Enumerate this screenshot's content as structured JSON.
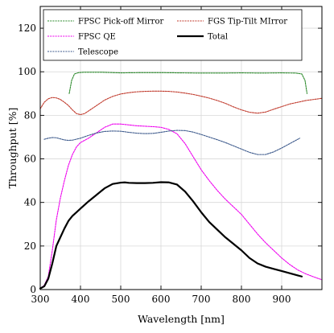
{
  "chart_data": {
    "type": "line",
    "title": "",
    "xlabel": "Wavelength [nm]",
    "ylabel": "Throughput [%]",
    "xlim": [
      300,
      1000
    ],
    "ylim": [
      0,
      130
    ],
    "xticks": [
      300,
      400,
      500,
      600,
      700,
      800,
      900
    ],
    "xtick_labels": [
      "300",
      "400",
      "500",
      "600",
      "700",
      "800",
      "900"
    ],
    "yticks": [
      0,
      20,
      40,
      60,
      80,
      100,
      120
    ],
    "ytick_labels": [
      "0",
      "20",
      "40",
      "60",
      "80",
      "100",
      "120"
    ],
    "grid": true,
    "legend": {
      "placement": "top",
      "columns": 2
    },
    "series": [
      {
        "name": "FPSC Pick-off Mirror",
        "color": "#2e8b2e",
        "style": "dotted",
        "x": [
          372,
          378,
          385,
          395,
          410,
          450,
          500,
          550,
          600,
          650,
          700,
          750,
          800,
          850,
          900,
          935,
          950,
          958,
          963
        ],
        "y": [
          90,
          96,
          99,
          99.6,
          99.8,
          99.8,
          99.5,
          99.6,
          99.6,
          99.5,
          99.4,
          99.4,
          99.5,
          99.4,
          99.5,
          99.4,
          99,
          96,
          90
        ]
      },
      {
        "name": "FGS Tip-Tilt MIrror",
        "color": "#c0392b",
        "style": "dotted",
        "x": [
          300,
          310,
          320,
          330,
          340,
          350,
          360,
          370,
          380,
          390,
          400,
          410,
          420,
          440,
          460,
          480,
          500,
          520,
          540,
          560,
          580,
          600,
          620,
          640,
          660,
          680,
          700,
          720,
          740,
          760,
          780,
          800,
          820,
          840,
          860,
          880,
          900,
          920,
          940,
          960,
          980,
          1000
        ],
        "y": [
          83,
          86,
          87.6,
          88.2,
          88,
          87.3,
          86,
          84.5,
          82.5,
          80.8,
          80.3,
          80.8,
          82,
          84.5,
          87,
          88.7,
          89.8,
          90.4,
          90.8,
          91,
          91.1,
          91.1,
          91,
          90.7,
          90.2,
          89.6,
          88.8,
          87.9,
          86.8,
          85.5,
          83.9,
          82.5,
          81.4,
          81,
          81.5,
          82.8,
          84,
          85.2,
          86,
          86.8,
          87.3,
          87.8
        ]
      },
      {
        "name": "FPSC QE",
        "color": "#ee00ee",
        "style": "dotted",
        "x": [
          300,
          310,
          320,
          330,
          340,
          350,
          360,
          370,
          380,
          390,
          400,
          420,
          440,
          460,
          480,
          500,
          520,
          540,
          560,
          580,
          600,
          620,
          640,
          660,
          680,
          700,
          720,
          740,
          760,
          780,
          800,
          820,
          840,
          860,
          880,
          900,
          920,
          940,
          960,
          980,
          1000
        ],
        "y": [
          0.5,
          2,
          6,
          18,
          32,
          42,
          50,
          57,
          62,
          65.5,
          67.5,
          69.5,
          72,
          74.5,
          76,
          76,
          75.6,
          75.2,
          75,
          74.8,
          74.5,
          73.5,
          71.5,
          67,
          61,
          55,
          50,
          45.5,
          41.5,
          38,
          34.5,
          30,
          25.5,
          21.5,
          18,
          14.5,
          11.5,
          9,
          7.2,
          5.8,
          4.5
        ]
      },
      {
        "name": "Total",
        "color": "#000000",
        "style": "solid",
        "x": [
          300,
          310,
          320,
          330,
          340,
          350,
          360,
          370,
          380,
          390,
          400,
          420,
          440,
          460,
          480,
          500,
          510,
          520,
          540,
          560,
          580,
          600,
          620,
          640,
          660,
          680,
          700,
          720,
          740,
          760,
          780,
          800,
          820,
          840,
          860,
          880,
          900,
          920,
          940,
          950
        ],
        "y": [
          0.5,
          1.5,
          5,
          12,
          20,
          24,
          28,
          31.5,
          33.8,
          35.5,
          37.2,
          40.5,
          43.5,
          46.5,
          48.5,
          49.1,
          49.2,
          49.0,
          48.9,
          48.9,
          49.0,
          49.3,
          49.2,
          48.2,
          45,
          40.5,
          35.5,
          31,
          27.5,
          24,
          21,
          18,
          14.5,
          12,
          10.5,
          9.5,
          8.5,
          7.5,
          6.5,
          6
        ]
      },
      {
        "name": "Telescope",
        "color": "#3d5a8c",
        "style": "dotted",
        "x": [
          310,
          320,
          330,
          340,
          350,
          360,
          370,
          380,
          400,
          420,
          440,
          460,
          480,
          500,
          520,
          540,
          560,
          580,
          600,
          620,
          640,
          660,
          680,
          700,
          720,
          740,
          760,
          780,
          800,
          820,
          840,
          860,
          880,
          900,
          920,
          945
        ],
        "y": [
          69,
          69.5,
          69.8,
          69.7,
          69.2,
          68.7,
          68.5,
          68.6,
          69.5,
          70.8,
          71.9,
          72.6,
          72.8,
          72.7,
          72.2,
          71.8,
          71.6,
          71.7,
          72.2,
          72.8,
          73.1,
          73,
          72.3,
          71.2,
          70,
          68.8,
          67.5,
          66,
          64.5,
          63,
          62,
          62,
          63.2,
          65,
          67,
          69.5
        ]
      }
    ]
  }
}
